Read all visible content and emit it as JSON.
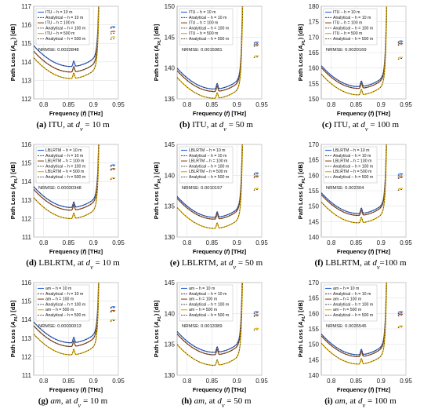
{
  "colors": {
    "h10": "#3b6fd8",
    "h100": "#9a5b2c",
    "h500": "#e6b400"
  },
  "shared": {
    "xlabel": "Frequency (f) [THz]",
    "ylabel": "Path Loss (A_PL) [dB]",
    "xticks": [
      "0.8",
      "0.85",
      "0.9",
      "0.95"
    ]
  },
  "chart_data": [
    {
      "type": "line",
      "caption_letter": "(a)",
      "caption_model": "ITU",
      "caption_tail": ", at d_v = 10 m",
      "legend": [
        "ITU – h = 10 m",
        "Analytical – h = 10 m",
        "ITU – h = 100 m",
        "Analytical – h = 100 m",
        "ITU – h = 500 m",
        "Analytical – h = 500 m"
      ],
      "nrmse_text": "NRMSE: 0.0022848",
      "ylim": [
        112,
        117
      ],
      "yticks": [
        112,
        113,
        114,
        115,
        116,
        117
      ],
      "series": [
        {
          "height_m": 10,
          "base": 113.75,
          "right_values": [
            115.9,
            115.85
          ]
        },
        {
          "height_m": 100,
          "base": 113.45,
          "right_values": [
            115.65,
            115.55
          ]
        },
        {
          "height_m": 500,
          "base": 113.1,
          "right_values": [
            115.35,
            115.25
          ]
        }
      ]
    },
    {
      "type": "line",
      "caption_letter": "(b)",
      "caption_model": "ITU",
      "caption_tail": ", at d_v = 50 m",
      "legend": [
        "ITU – h = 10 m",
        "Analytical – h = 10 m",
        "ITU – h = 100 m",
        "Analytical – h = 100 m",
        "ITU – h = 500 m",
        "Analytical – h = 500 m"
      ],
      "nrmse_text": "NRMSE: 0.0015981",
      "ylim": [
        135,
        150
      ],
      "yticks": [
        135,
        140,
        145,
        150
      ],
      "series": [
        {
          "height_m": 10,
          "base": 136.6,
          "right_values": [
            144.2,
            144.0
          ]
        },
        {
          "height_m": 100,
          "base": 136.2,
          "right_values": [
            143.8,
            143.6
          ]
        },
        {
          "height_m": 500,
          "base": 135.1,
          "right_values": [
            142.0,
            141.8
          ]
        }
      ]
    },
    {
      "type": "line",
      "caption_letter": "(c)",
      "caption_model": "ITU",
      "caption_tail": ", at d_v = 100 m",
      "legend": [
        "ITU – h = 10 m",
        "Analytical – h = 10 m",
        "ITU – h = 100 m",
        "Analytical – h = 100 m",
        "ITU – h = 500 m",
        "Analytical – h = 500 m"
      ],
      "nrmse_text": "NRMSE: 0.0020169",
      "ylim": [
        150,
        180
      ],
      "yticks": [
        150,
        155,
        160,
        165,
        170,
        175,
        180
      ],
      "series": [
        {
          "height_m": 10,
          "base": 154.0,
          "right_values": [
            168.8,
            168.4
          ]
        },
        {
          "height_m": 100,
          "base": 153.4,
          "right_values": [
            168.0,
            167.6
          ]
        },
        {
          "height_m": 500,
          "base": 151.3,
          "right_values": [
            163.5,
            163.1
          ]
        }
      ]
    },
    {
      "type": "line",
      "caption_letter": "(d)",
      "caption_model": "LBLRTM",
      "caption_tail": ", at d_v = 10 m",
      "legend": [
        "LBLRTM – h = 10 m",
        "Analytical – h = 10 m",
        "LBLRTM – h = 100 m",
        "Analytical – h = 100 m",
        "LBLRTM – h = 500 m",
        "Analytical – h = 500 m"
      ],
      "nrmse_text": "NRMSE: 0.00030348",
      "ylim": [
        111,
        116
      ],
      "yticks": [
        111,
        112,
        113,
        114,
        115,
        116
      ],
      "series": [
        {
          "height_m": 10,
          "base": 112.6,
          "right_values": [
            114.9,
            114.85
          ]
        },
        {
          "height_m": 100,
          "base": 112.45,
          "right_values": [
            114.7,
            114.65
          ]
        },
        {
          "height_m": 500,
          "base": 112.0,
          "right_values": [
            114.2,
            114.15
          ]
        }
      ]
    },
    {
      "type": "line",
      "caption_letter": "(e)",
      "caption_model": "LBLRTM",
      "caption_tail": ", at d_v = 50 m",
      "legend": [
        "LBLRTM – h = 10 m",
        "Analytical – h = 10 m",
        "LBLRTM – h = 100 m",
        "Analytical – h = 100 m",
        "LBLRTM – h = 500 m",
        "Analytical – h = 500 m"
      ],
      "nrmse_text": "NRMSE: 0.0010197",
      "ylim": [
        130,
        145
      ],
      "yticks": [
        130,
        135,
        140,
        145
      ],
      "series": [
        {
          "height_m": 10,
          "base": 133.2,
          "right_values": [
            140.4,
            140.2
          ]
        },
        {
          "height_m": 100,
          "base": 132.9,
          "right_values": [
            139.9,
            139.7
          ]
        },
        {
          "height_m": 500,
          "base": 131.4,
          "right_values": [
            137.9,
            137.7
          ]
        }
      ]
    },
    {
      "type": "line",
      "caption_letter": "(f)",
      "caption_model": "LBLRTM",
      "caption_tail": ", at d_v=100 m",
      "legend": [
        "LBLRTM – h = 10 m",
        "Analytical – h = 10 m",
        "LBLRTM – h = 100 m",
        "Analytical – h = 100 m",
        "LBLRTM – h = 500 m",
        "Analytical – h = 500 m"
      ],
      "nrmse_text": "NRMSE: 0.002304",
      "ylim": [
        140,
        170
      ],
      "yticks": [
        140,
        145,
        150,
        155,
        160,
        165,
        170
      ],
      "series": [
        {
          "height_m": 10,
          "base": 147.6,
          "right_values": [
            160.5,
            160.1
          ]
        },
        {
          "height_m": 100,
          "base": 147.0,
          "right_values": [
            159.6,
            159.2
          ]
        },
        {
          "height_m": 500,
          "base": 144.6,
          "right_values": [
            155.8,
            155.4
          ]
        }
      ]
    },
    {
      "type": "line",
      "caption_letter": "(g)",
      "caption_model": "am",
      "caption_tail": ", at d_v = 10 m",
      "legend": [
        "am – h = 10 m",
        "Analytical – h = 10 m",
        "am – h = 100 m",
        "Analytical – h = 100 m",
        "am – h = 500 m",
        "Analytical – h = 500 m"
      ],
      "nrmse_text": "NRMSE: 0.00030013",
      "ylim": [
        111,
        116
      ],
      "yticks": [
        111,
        112,
        113,
        114,
        115,
        116
      ],
      "series": [
        {
          "height_m": 10,
          "base": 112.75,
          "right_values": [
            114.7,
            114.65
          ]
        },
        {
          "height_m": 100,
          "base": 112.55,
          "right_values": [
            114.5,
            114.45
          ]
        },
        {
          "height_m": 500,
          "base": 112.1,
          "right_values": [
            114.0,
            113.95
          ]
        }
      ]
    },
    {
      "type": "line",
      "caption_letter": "(h)",
      "caption_model": "am",
      "caption_tail": ", at d_v = 50 m",
      "legend": [
        "am – h = 10 m",
        "Analytical – h = 10 m",
        "am – h = 100 m",
        "Analytical – h = 100 m",
        "am – h = 500 m",
        "Analytical – h = 500 m"
      ],
      "nrmse_text": "NRMSE: 0.0013389",
      "ylim": [
        130,
        145
      ],
      "yticks": [
        130,
        135,
        140,
        145
      ],
      "series": [
        {
          "height_m": 10,
          "base": 133.7,
          "right_values": [
            140.3,
            140.1
          ]
        },
        {
          "height_m": 100,
          "base": 133.3,
          "right_values": [
            139.8,
            139.6
          ]
        },
        {
          "height_m": 500,
          "base": 131.6,
          "right_values": [
            137.6,
            137.4
          ]
        }
      ]
    },
    {
      "type": "line",
      "caption_letter": "(i)",
      "caption_model": "am",
      "caption_tail": ", at d_v = 100 m",
      "legend": [
        "am – h = 10 m",
        "Analytical – h = 10 m",
        "am – h = 100 m",
        "Analytical – h = 100 m",
        "am – h = 500 m",
        "Analytical – h = 500 m"
      ],
      "nrmse_text": "NRMSE: 0.0026545",
      "ylim": [
        140,
        170
      ],
      "yticks": [
        140,
        145,
        150,
        155,
        160,
        165,
        170
      ],
      "series": [
        {
          "height_m": 10,
          "base": 146.6,
          "right_values": [
            160.6,
            160.2
          ]
        },
        {
          "height_m": 100,
          "base": 146.0,
          "right_values": [
            159.8,
            159.4
          ]
        },
        {
          "height_m": 500,
          "base": 143.6,
          "right_values": [
            156.0,
            155.6
          ]
        }
      ]
    }
  ]
}
